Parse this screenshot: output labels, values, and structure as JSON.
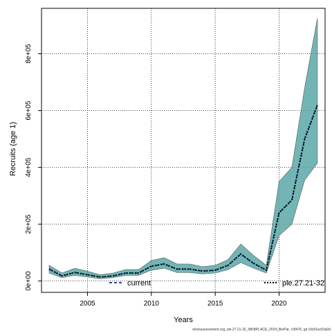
{
  "chart_data": {
    "type": "line",
    "xlabel": "Years",
    "ylabel": "Recruits (age 1)",
    "xlim": [
      2001.4,
      2023.6
    ],
    "ylim": [
      -40000,
      960000
    ],
    "x_ticks": [
      2005,
      2010,
      2015,
      2020
    ],
    "x_tick_labels": [
      "2005",
      "2010",
      "2015",
      "2020"
    ],
    "y_ticks": [
      0,
      200000,
      400000,
      600000,
      800000
    ],
    "y_tick_labels": [
      "0e+00",
      "2e+05",
      "4e+05",
      "6e+05",
      "8e+05"
    ],
    "grid": true,
    "legend_placement": "bottom",
    "x": [
      2002,
      2003,
      2004,
      2005,
      2006,
      2007,
      2008,
      2009,
      2010,
      2011,
      2012,
      2013,
      2014,
      2015,
      2016,
      2017,
      2018,
      2019,
      2020,
      2021,
      2022,
      2023
    ],
    "series": [
      {
        "name": "current",
        "style": "dashed",
        "color": "#1f4e8c",
        "values": [
          42000,
          18000,
          30000,
          22000,
          14000,
          18000,
          28000,
          28000,
          52000,
          60000,
          42000,
          42000,
          35000,
          38000,
          55000,
          95000,
          62000,
          38000,
          240000,
          285000,
          500000,
          620000
        ],
        "lower": [
          28000,
          12000,
          20000,
          14000,
          8000,
          12000,
          20000,
          20000,
          38000,
          45000,
          30000,
          30000,
          25000,
          28000,
          40000,
          65000,
          45000,
          28000,
          160000,
          200000,
          355000,
          415000
        ],
        "upper": [
          55000,
          28000,
          45000,
          34000,
          22000,
          28000,
          40000,
          40000,
          72000,
          82000,
          60000,
          60000,
          50000,
          55000,
          75000,
          130000,
          90000,
          55000,
          350000,
          400000,
          680000,
          925000
        ]
      },
      {
        "name": "ple.27.21-32",
        "style": "dotted",
        "color": "#000000",
        "values": [
          42000,
          18000,
          30000,
          22000,
          14000,
          18000,
          28000,
          28000,
          52000,
          60000,
          42000,
          42000,
          35000,
          38000,
          55000,
          95000,
          62000,
          38000,
          240000,
          285000,
          500000,
          620000
        ]
      }
    ],
    "band_color": "#5aa8a8",
    "footer": "stockassessment.org, ple.27.21-32_WKBPLACE_2024_BioPar, r18476, git c9c81ac53a0d"
  }
}
